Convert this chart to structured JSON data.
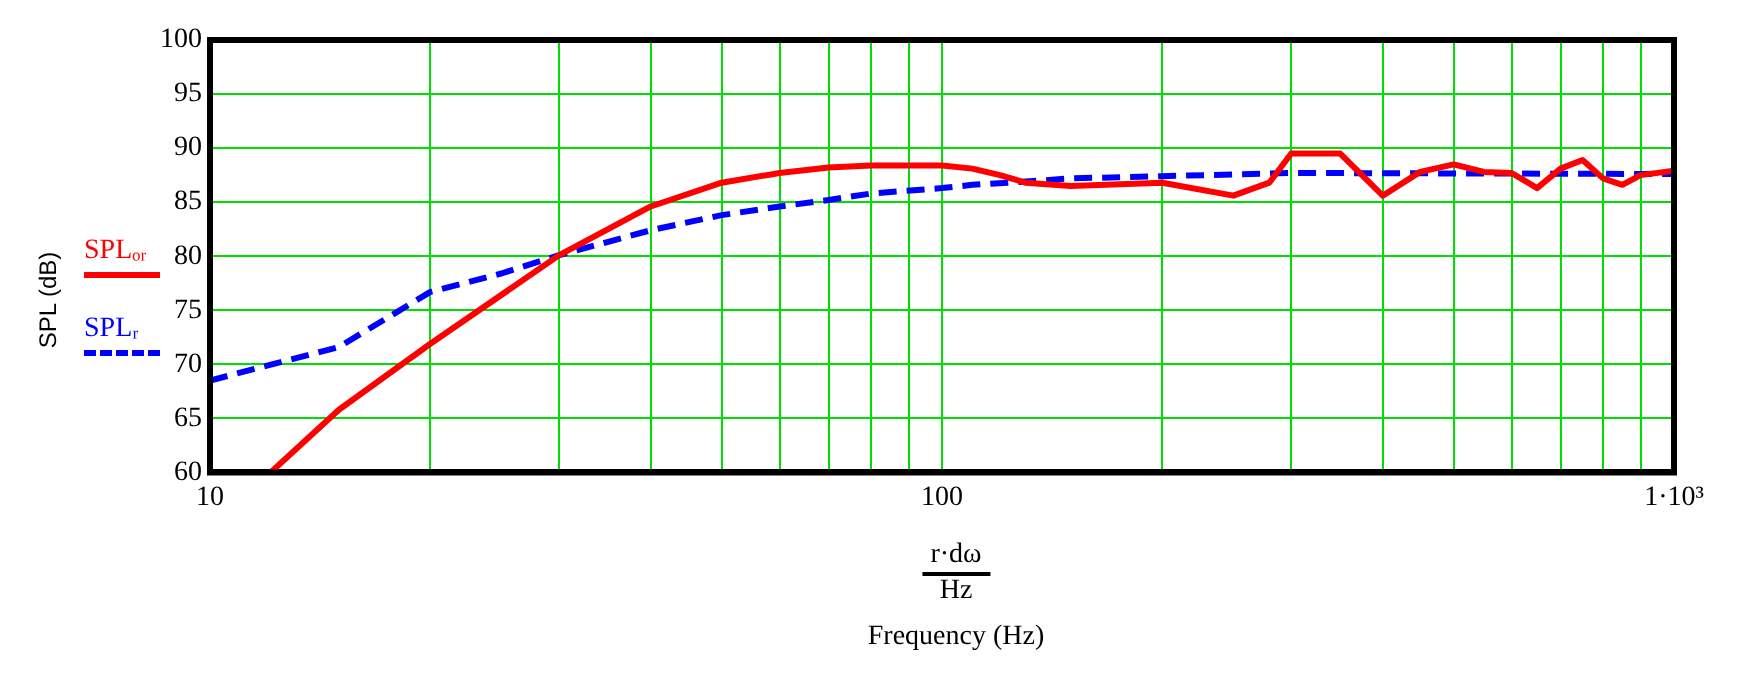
{
  "chart_data": {
    "type": "line",
    "xlabel": "Frequency (Hz)",
    "ylabel": "SPL (dB)",
    "annotations": [
      "r·dω",
      "Hz"
    ],
    "log": "x",
    "grid": true,
    "legend": "left",
    "marker": "none",
    "xlim": [
      10,
      1000
    ],
    "ylim": [
      60,
      100
    ],
    "xticks": [
      10,
      {
        "value": 20,
        "label": null
      },
      {
        "value": 30,
        "label": null
      },
      {
        "value": 40,
        "label": null
      },
      {
        "value": 50,
        "label": null
      },
      {
        "value": 60,
        "label": null
      },
      {
        "value": 70,
        "label": null
      },
      {
        "value": 80,
        "label": null
      },
      {
        "value": 90,
        "label": null
      },
      100,
      {
        "value": 200,
        "label": null
      },
      {
        "value": 300,
        "label": null
      },
      {
        "value": 400,
        "label": null
      },
      {
        "value": 500,
        "label": null
      },
      {
        "value": 600,
        "label": null
      },
      {
        "value": 700,
        "label": null
      },
      {
        "value": 800,
        "label": null
      },
      {
        "value": 900,
        "label": null
      },
      {
        "value": 1000,
        "label": "1·10³"
      }
    ],
    "yticks": [
      60,
      65,
      70,
      75,
      80,
      85,
      90,
      95,
      100
    ],
    "series": [
      {
        "name": "SPLₒᵣ",
        "color": "#ff0000",
        "line_style": "solid",
        "x": [
          12.1,
          15,
          20,
          30,
          40,
          50,
          60,
          70,
          80,
          100,
          110,
          120,
          130,
          150,
          200,
          250,
          280,
          300,
          350,
          400,
          450,
          500,
          550,
          600,
          650,
          700,
          750,
          800,
          850,
          900,
          1000
        ],
        "values": [
          60,
          65.8,
          71.9,
          80.1,
          84.6,
          86.8,
          87.7,
          88.2,
          88.4,
          88.4,
          88.1,
          87.5,
          86.8,
          86.5,
          86.8,
          85.6,
          86.8,
          89.5,
          89.5,
          85.6,
          87.8,
          88.5,
          87.8,
          87.7,
          86.3,
          88.1,
          88.9,
          87.2,
          86.6,
          87.5,
          87.9
        ]
      },
      {
        "name": "SPLᵣ",
        "color": "#0000ff",
        "line_style": "dashed",
        "x": [
          10,
          15,
          20,
          25,
          30,
          40,
          50,
          60,
          70,
          80,
          100,
          110,
          130,
          150,
          200,
          300,
          1000
        ],
        "values": [
          68.5,
          71.6,
          76.7,
          78.4,
          80.1,
          82.4,
          83.8,
          84.6,
          85.2,
          85.8,
          86.3,
          86.6,
          86.9,
          87.2,
          87.4,
          87.7,
          87.6
        ]
      }
    ]
  }
}
